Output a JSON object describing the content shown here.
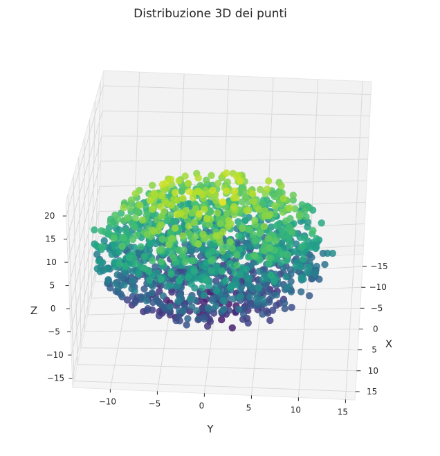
{
  "chart_data": {
    "type": "scatter3d",
    "title": "Distribuzione 3D dei punti",
    "xlabel": "X",
    "ylabel": "Y",
    "zlabel": "Z",
    "x_ticks": [
      "−15",
      "−10",
      "−5",
      "0",
      "5",
      "10",
      "15"
    ],
    "y_ticks": [
      "−10",
      "−5",
      "0",
      "5",
      "10",
      "15"
    ],
    "z_ticks": [
      "20",
      "15",
      "10",
      "5",
      "0",
      "−5",
      "−10",
      "−15"
    ],
    "xlim": [
      -18,
      17
    ],
    "ylim": [
      -14,
      16
    ],
    "zlim": [
      -17,
      23
    ],
    "colormap": "viridis",
    "color_by": "z",
    "grid": true,
    "pane_color": "#f2f2f2",
    "grid_color": "#d8d8d8",
    "n_points": 1500,
    "distribution": "approximately spherical cloud centered at origin, radius about 13"
  }
}
